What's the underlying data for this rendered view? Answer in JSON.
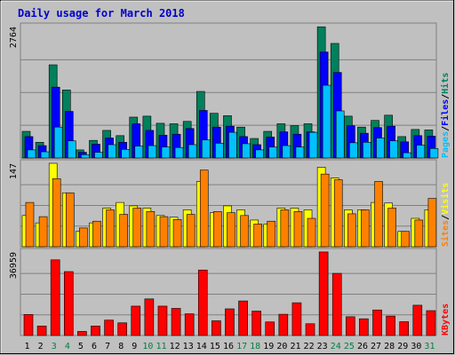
{
  "title": "Daily usage for March 2018",
  "colors": {
    "background": "#C0C0C0",
    "plot": "#C0C0C0",
    "title": "#0000CC",
    "hits": "#00805C",
    "files": "#0000FF",
    "pages": "#00C0FF",
    "visits": "#FFFF00",
    "sites": "#FF8000",
    "kbytes": "#FF0000",
    "weekend": "#008040",
    "weekday": "#000000"
  },
  "chart_data": [
    {
      "type": "bar",
      "panel": "top",
      "ymax_label": "2764",
      "ylim": [
        0,
        2764
      ],
      "grid": true,
      "legend": {
        "position": "right-vertical",
        "entries": [
          "Pages",
          "Files",
          "Hits"
        ],
        "separator": "/"
      },
      "categories": [
        "1",
        "2",
        "3",
        "4",
        "5",
        "6",
        "7",
        "8",
        "9",
        "10",
        "11",
        "12",
        "13",
        "14",
        "15",
        "16",
        "17",
        "18",
        "19",
        "20",
        "21",
        "22",
        "23",
        "24",
        "25",
        "26",
        "27",
        "28",
        "29",
        "30",
        "31"
      ],
      "series": [
        {
          "name": "Hits",
          "values": [
            560,
            330,
            1960,
            1430,
            170,
            370,
            580,
            470,
            860,
            880,
            730,
            720,
            770,
            1400,
            940,
            890,
            650,
            410,
            560,
            720,
            680,
            720,
            2760,
            2410,
            880,
            650,
            790,
            900,
            450,
            600,
            590
          ]
        },
        {
          "name": "Files",
          "values": [
            450,
            260,
            1490,
            980,
            120,
            290,
            420,
            330,
            720,
            580,
            480,
            500,
            620,
            1000,
            650,
            670,
            450,
            280,
            440,
            550,
            500,
            550,
            2230,
            1800,
            680,
            520,
            640,
            670,
            340,
            470,
            460
          ]
        },
        {
          "name": "Pages",
          "values": [
            170,
            130,
            650,
            360,
            70,
            120,
            280,
            180,
            250,
            260,
            230,
            220,
            280,
            380,
            310,
            540,
            300,
            170,
            230,
            260,
            230,
            540,
            1530,
            990,
            320,
            330,
            420,
            360,
            110,
            270,
            200
          ]
        }
      ]
    },
    {
      "type": "bar",
      "panel": "middle",
      "ymax_label": "147",
      "ylim": [
        0,
        147
      ],
      "grid": true,
      "legend": {
        "position": "right-vertical",
        "entries": [
          "Sites",
          "Visits"
        ],
        "separator": "/"
      },
      "categories": [
        "1",
        "2",
        "3",
        "4",
        "5",
        "6",
        "7",
        "8",
        "9",
        "10",
        "11",
        "12",
        "13",
        "14",
        "15",
        "16",
        "17",
        "18",
        "19",
        "20",
        "21",
        "22",
        "23",
        "24",
        "25",
        "26",
        "27",
        "28",
        "29",
        "30",
        "31"
      ],
      "series": [
        {
          "name": "Visits",
          "values": [
            55,
            42,
            147,
            95,
            27,
            42,
            68,
            78,
            72,
            68,
            55,
            52,
            65,
            115,
            60,
            72,
            65,
            47,
            40,
            68,
            68,
            65,
            140,
            121,
            65,
            65,
            78,
            77,
            27,
            50,
            65
          ]
        },
        {
          "name": "Sites",
          "values": [
            78,
            53,
            120,
            95,
            33,
            45,
            65,
            57,
            68,
            62,
            53,
            48,
            57,
            135,
            62,
            60,
            55,
            40,
            45,
            65,
            62,
            50,
            128,
            118,
            58,
            65,
            115,
            68,
            27,
            47,
            85
          ]
        }
      ]
    },
    {
      "type": "bar",
      "panel": "bottom",
      "ymax_label": "36959",
      "ylim": [
        0,
        36959
      ],
      "grid": true,
      "legend": {
        "position": "right-vertical",
        "entries": [
          "KBytes"
        ]
      },
      "categories": [
        "1",
        "2",
        "3",
        "4",
        "5",
        "6",
        "7",
        "8",
        "9",
        "10",
        "11",
        "12",
        "13",
        "14",
        "15",
        "16",
        "17",
        "18",
        "19",
        "20",
        "21",
        "22",
        "23",
        "24",
        "25",
        "26",
        "27",
        "28",
        "29",
        "30",
        "31"
      ],
      "weekend_days": [
        "3",
        "4",
        "10",
        "11",
        "17",
        "18",
        "24",
        "25",
        "31"
      ],
      "series": [
        {
          "name": "KBytes",
          "values": [
            9300,
            4200,
            33500,
            28300,
            1800,
            4200,
            6800,
            5600,
            13000,
            16200,
            13000,
            12000,
            9600,
            29000,
            6500,
            11800,
            15300,
            10800,
            6000,
            9400,
            14500,
            5200,
            37000,
            27500,
            8300,
            7400,
            11300,
            8600,
            6100,
            13400,
            11000
          ]
        }
      ]
    }
  ]
}
